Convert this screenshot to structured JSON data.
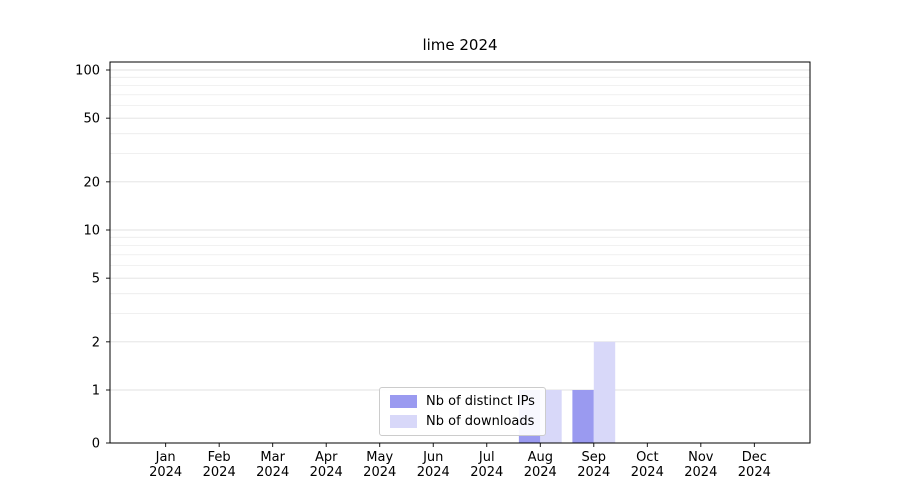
{
  "title": "lime 2024",
  "chart_data": {
    "type": "bar",
    "title": "lime 2024",
    "categories": [
      "Jan",
      "Feb",
      "Mar",
      "Apr",
      "May",
      "Jun",
      "Jul",
      "Aug",
      "Sep",
      "Oct",
      "Nov",
      "Dec"
    ],
    "category_year": "2024",
    "series": [
      {
        "name": "Nb of distinct IPs",
        "color": "#9a9af0",
        "values": [
          0,
          0,
          0,
          0,
          0,
          0,
          0,
          1,
          1,
          0,
          0,
          0
        ]
      },
      {
        "name": "Nb of downloads",
        "color": "#d8d8f9",
        "values": [
          0,
          0,
          0,
          0,
          0,
          0,
          0,
          1,
          2,
          0,
          0,
          0
        ]
      }
    ],
    "yticks": [
      0,
      1,
      2,
      5,
      10,
      20,
      50,
      100
    ],
    "ylim": [
      0,
      112
    ],
    "yscale": "symlog",
    "grid": true,
    "legend_position": "lower center"
  }
}
